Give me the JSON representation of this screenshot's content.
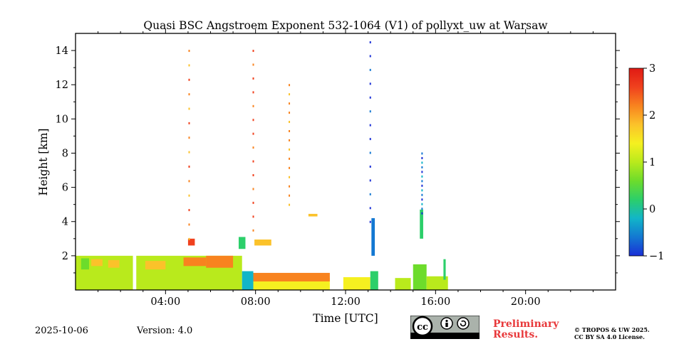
{
  "chart_data": {
    "type": "heatmap",
    "title": "Quasi BSC Angstroem Exponent 532-1064 (V1) of pollyxt_uw at Warsaw",
    "xlabel": "Time [UTC]",
    "ylabel": "Height [km]",
    "xlim_hours": [
      0,
      24
    ],
    "ylim_km": [
      0,
      15
    ],
    "x_ticks": [
      {
        "value": 4,
        "label": "04:00"
      },
      {
        "value": 8,
        "label": "08:00"
      },
      {
        "value": 12,
        "label": "12:00"
      },
      {
        "value": 16,
        "label": "16:00"
      },
      {
        "value": 20,
        "label": "20:00"
      }
    ],
    "y_ticks": [
      {
        "value": 2,
        "label": "2"
      },
      {
        "value": 4,
        "label": "4"
      },
      {
        "value": 6,
        "label": "6"
      },
      {
        "value": 8,
        "label": "8"
      },
      {
        "value": 10,
        "label": "10"
      },
      {
        "value": 12,
        "label": "12"
      },
      {
        "value": 14,
        "label": "14"
      }
    ],
    "colorbar": {
      "min": -1,
      "max": 3,
      "ticks": [
        {
          "value": -1,
          "label": "−1"
        },
        {
          "value": 0,
          "label": "0"
        },
        {
          "value": 1,
          "label": "1"
        },
        {
          "value": 2,
          "label": "2"
        },
        {
          "value": 3,
          "label": "3"
        }
      ],
      "colormap": [
        "#1a2fd6",
        "#1378d2",
        "#12b5c8",
        "#2ccf6a",
        "#6ddc2b",
        "#b9ea1c",
        "#f5f020",
        "#fbc22a",
        "#f8831f",
        "#f0411e",
        "#e01a14"
      ]
    },
    "regions": [
      {
        "t0": 0.0,
        "t1": 2.55,
        "h0": 0.0,
        "h1": 2.0,
        "value": 1.0
      },
      {
        "t0": 0.25,
        "t1": 0.6,
        "h0": 1.2,
        "h1": 1.85,
        "value": 0.4
      },
      {
        "t0": 0.7,
        "t1": 1.2,
        "h0": 1.4,
        "h1": 1.8,
        "value": 1.6
      },
      {
        "t0": 1.45,
        "t1": 1.95,
        "h0": 1.3,
        "h1": 1.75,
        "value": 1.9
      },
      {
        "t0": 2.7,
        "t1": 7.4,
        "h0": 0.0,
        "h1": 2.0,
        "value": 1.0
      },
      {
        "t0": 3.1,
        "t1": 4.0,
        "h0": 1.2,
        "h1": 1.7,
        "value": 1.8
      },
      {
        "t0": 4.8,
        "t1": 5.8,
        "h0": 1.4,
        "h1": 1.9,
        "value": 2.2
      },
      {
        "t0": 5.8,
        "t1": 7.0,
        "h0": 1.3,
        "h1": 2.0,
        "value": 2.3
      },
      {
        "t0": 7.4,
        "t1": 7.9,
        "h0": 0.0,
        "h1": 1.1,
        "value": -0.3
      },
      {
        "t0": 7.9,
        "t1": 11.3,
        "h0": 0.0,
        "h1": 0.7,
        "value": 1.2
      },
      {
        "t0": 7.9,
        "t1": 11.3,
        "h0": 0.5,
        "h1": 1.0,
        "value": 2.2
      },
      {
        "t0": 11.9,
        "t1": 13.1,
        "h0": 0.0,
        "h1": 0.75,
        "value": 1.3
      },
      {
        "t0": 13.1,
        "t1": 13.45,
        "h0": 0.0,
        "h1": 1.1,
        "value": 0.2
      },
      {
        "t0": 14.2,
        "t1": 14.9,
        "h0": 0.0,
        "h1": 0.7,
        "value": 0.8
      },
      {
        "t0": 15.0,
        "t1": 15.6,
        "h0": 0.0,
        "h1": 1.5,
        "value": 0.6
      },
      {
        "t0": 15.6,
        "t1": 16.55,
        "h0": 0.0,
        "h1": 0.8,
        "value": 0.9
      },
      {
        "t0": 5.0,
        "t1": 5.3,
        "h0": 2.6,
        "h1": 3.0,
        "value": 2.5
      },
      {
        "t0": 7.25,
        "t1": 7.55,
        "h0": 2.4,
        "h1": 3.1,
        "value": 0.2
      },
      {
        "t0": 7.95,
        "t1": 8.7,
        "h0": 2.6,
        "h1": 2.95,
        "value": 1.6
      },
      {
        "t0": 10.35,
        "t1": 10.75,
        "h0": 4.3,
        "h1": 4.45,
        "value": 1.8
      },
      {
        "t0": 13.15,
        "t1": 13.3,
        "h0": 2.0,
        "h1": 4.2,
        "value": -0.6
      },
      {
        "t0": 15.3,
        "t1": 15.45,
        "h0": 3.0,
        "h1": 4.7,
        "value": 0.0
      },
      {
        "t0": 16.35,
        "t1": 16.45,
        "h0": 0.6,
        "h1": 1.8,
        "value": 0.3
      }
    ],
    "scatter_columns": [
      {
        "t": 5.05,
        "h0": 3.0,
        "h1": 14.0,
        "value": 2.2
      },
      {
        "t": 7.9,
        "h0": 3.5,
        "h1": 14.0,
        "value": 2.4
      },
      {
        "t": 9.5,
        "h0": 5.0,
        "h1": 12.0,
        "value": 2.0
      },
      {
        "t": 13.1,
        "h0": 4.0,
        "h1": 14.5,
        "value": -0.8
      },
      {
        "t": 15.4,
        "h0": 4.5,
        "h1": 8.0,
        "value": -0.5
      }
    ],
    "footer": {
      "date": "2025-10-06",
      "version": "Version: 4.0",
      "preliminary_line1": "Preliminary",
      "preliminary_line2": "Results.",
      "license_line1": "© TROPOS & UW 2025.",
      "license_line2": "CC BY SA 4.0 License.",
      "badge_cc": "cc",
      "badge_by": "BY",
      "badge_sa": "SA"
    }
  }
}
